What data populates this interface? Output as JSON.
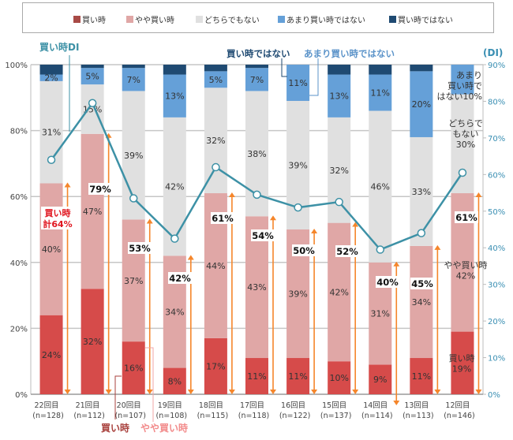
{
  "colors": {
    "buy": "#d64b4a",
    "buy_legend": "#a84a46",
    "somewhat_buy": "#e0a7a6",
    "neither": "#e0e0e0",
    "not_really": "#65a0d8",
    "not_buy": "#1f4a72",
    "di_line": "#3d91a6",
    "arrow": "#f5862b",
    "right_axis": "#3a8fb3",
    "total_label_red": "#e0141e",
    "anno_buy": "#a8403c",
    "anno_somewhat": "#f28b8b",
    "anno_not_really": "#5b93c9"
  },
  "annotations": {
    "di_label": "買い時DI",
    "not_buy_label": "買い時ではない",
    "not_really_label": "あまり買い時ではない",
    "di_axis_label": "(DI)",
    "buy_total_line1": "買い時",
    "buy_total_line2": "計64%",
    "bottom_buy": "買い時",
    "bottom_somewhat": "やや買い時",
    "r12_not_really": [
      "あまり",
      "買い時で",
      "はない10%"
    ],
    "r12_neither": [
      "どちらで",
      "もない",
      "30%"
    ],
    "r12_somewhat": [
      "やや買い時",
      "42%"
    ],
    "r12_buy": [
      "買い時",
      "19%"
    ]
  },
  "chart_data": {
    "type": "bar",
    "stacked": true,
    "title": "",
    "xlabel": "",
    "ylabel": "",
    "ylim": [
      0,
      100
    ],
    "y2lim": [
      0,
      90
    ],
    "y2label": "(DI)",
    "grid": true,
    "legend_position": "top",
    "yticks": [
      "0%",
      "20%",
      "40%",
      "60%",
      "80%",
      "100%"
    ],
    "y2ticks": [
      "0%",
      "10%",
      "20%",
      "30%",
      "40%",
      "50%",
      "60%",
      "70%",
      "80%",
      "90%"
    ],
    "categories": [
      "22回目",
      "21回目",
      "20回目",
      "19回目",
      "18回目",
      "17回目",
      "16回目",
      "15回目",
      "14回目",
      "13回目",
      "12回目"
    ],
    "sample_sizes": [
      "(n=128)",
      "(n=112)",
      "(n=107)",
      "(n=108)",
      "(n=115)",
      "(n=118)",
      "(n=122)",
      "(n=137)",
      "(n=114)",
      "(n=113)",
      "(n=146)"
    ],
    "series": [
      {
        "key": "buy",
        "name": "買い時",
        "values": [
          24,
          32,
          16,
          8,
          17,
          11,
          11,
          10,
          9,
          11,
          19
        ],
        "labels": [
          "24%",
          "32%",
          "16%",
          "8%",
          "17%",
          "11%",
          "11%",
          "10%",
          "9%",
          "11%",
          ""
        ]
      },
      {
        "key": "somewhat_buy",
        "name": "やや買い時",
        "values": [
          40,
          47,
          37,
          34,
          44,
          43,
          39,
          42,
          31,
          34,
          42
        ],
        "labels": [
          "40%",
          "47%",
          "37%",
          "34%",
          "44%",
          "43%",
          "39%",
          "42%",
          "31%",
          "34%",
          ""
        ]
      },
      {
        "key": "neither",
        "name": "どちらでもない",
        "values": [
          31,
          15,
          39,
          42,
          32,
          38,
          39,
          32,
          46,
          33,
          30
        ],
        "labels": [
          "31%",
          "15%",
          "39%",
          "42%",
          "32%",
          "38%",
          "39%",
          "32%",
          "46%",
          "33%",
          ""
        ]
      },
      {
        "key": "not_really",
        "name": "あまり買い時ではない",
        "values": [
          2,
          5,
          7,
          13,
          5,
          7,
          11,
          13,
          11,
          20,
          10
        ],
        "labels": [
          "2%",
          "5%",
          "7%",
          "13%",
          "5%",
          "7%",
          "11%",
          "13%",
          "11%",
          "20%",
          ""
        ]
      },
      {
        "key": "not_buy",
        "name": "買い時ではない",
        "values": [
          3,
          1,
          1,
          3,
          2,
          1,
          0,
          3,
          3,
          2,
          0
        ],
        "labels": [
          "",
          "",
          "",
          "",
          "",
          "",
          "",
          "",
          "",
          "",
          ""
        ]
      }
    ],
    "buy_total": [
      64,
      79,
      53,
      42,
      61,
      54,
      50,
      52,
      40,
      45,
      61
    ],
    "buy_total_labels": [
      "",
      "79%",
      "53%",
      "42%",
      "61%",
      "54%",
      "50%",
      "52%",
      "40%",
      "45%",
      "61%"
    ],
    "di_line": {
      "name": "買い時DI",
      "values": [
        64,
        79.5,
        53.5,
        42.5,
        62,
        54.5,
        51,
        52.5,
        39.5,
        44,
        60.5
      ]
    }
  }
}
